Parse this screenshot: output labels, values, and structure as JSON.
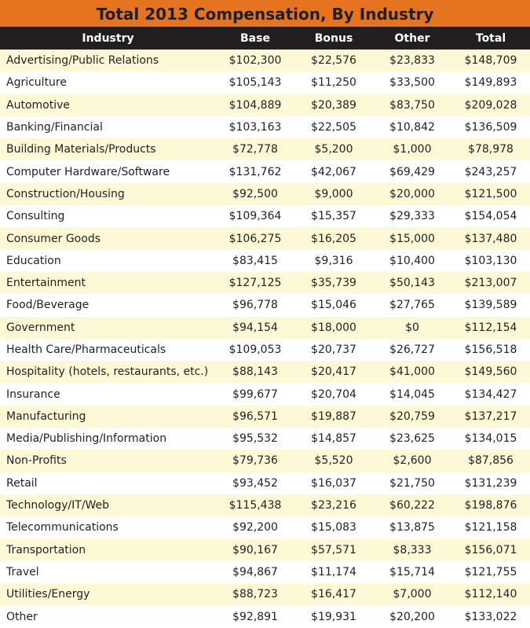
{
  "title": "Total 2013 Compensation, By Industry",
  "columns": [
    "Industry",
    "Base",
    "Bonus",
    "Other",
    "Total"
  ],
  "rows": [
    [
      "Advertising/Public Relations",
      "$102,300",
      "$22,576",
      "$23,833",
      "$148,709"
    ],
    [
      "Agriculture",
      "$105,143",
      "$11,250",
      "$33,500",
      "$149,893"
    ],
    [
      "Automotive",
      "$104,889",
      "$20,389",
      "$83,750",
      "$209,028"
    ],
    [
      "Banking/Financial",
      "$103,163",
      "$22,505",
      "$10,842",
      "$136,509"
    ],
    [
      "Building Materials/Products",
      "$72,778",
      "$5,200",
      "$1,000",
      "$78,978"
    ],
    [
      "Computer Hardware/Software",
      "$131,762",
      "$42,067",
      "$69,429",
      "$243,257"
    ],
    [
      "Construction/Housing",
      "$92,500",
      "$9,000",
      "$20,000",
      "$121,500"
    ],
    [
      "Consulting",
      "$109,364",
      "$15,357",
      "$29,333",
      "$154,054"
    ],
    [
      "Consumer Goods",
      "$106,275",
      "$16,205",
      "$15,000",
      "$137,480"
    ],
    [
      "Education",
      "$83,415",
      "$9,316",
      "$10,400",
      "$103,130"
    ],
    [
      "Entertainment",
      "$127,125",
      "$35,739",
      "$50,143",
      "$213,007"
    ],
    [
      "Food/Beverage",
      "$96,778",
      "$15,046",
      "$27,765",
      "$139,589"
    ],
    [
      "Government",
      "$94,154",
      "$18,000",
      "$0",
      "$112,154"
    ],
    [
      "Health Care/Pharmaceuticals",
      "$109,053",
      "$20,737",
      "$26,727",
      "$156,518"
    ],
    [
      "Hospitality (hotels, restaurants, etc.)",
      "$88,143",
      "$20,417",
      "$41,000",
      "$149,560"
    ],
    [
      "Insurance",
      "$99,677",
      "$20,704",
      "$14,045",
      "$134,427"
    ],
    [
      "Manufacturing",
      "$96,571",
      "$19,887",
      "$20,759",
      "$137,217"
    ],
    [
      "Media/Publishing/Information",
      "$95,532",
      "$14,857",
      "$23,625",
      "$134,015"
    ],
    [
      "Non-Profits",
      "$79,736",
      "$5,520",
      "$2,600",
      "$87,856"
    ],
    [
      "Retail",
      "$93,452",
      "$16,037",
      "$21,750",
      "$131,239"
    ],
    [
      "Technology/IT/Web",
      "$115,438",
      "$23,216",
      "$60,222",
      "$198,876"
    ],
    [
      "Telecommunications",
      "$92,200",
      "$15,083",
      "$13,875",
      "$121,158"
    ],
    [
      "Transportation",
      "$90,167",
      "$57,571",
      "$8,333",
      "$156,071"
    ],
    [
      "Travel",
      "$94,867",
      "$11,174",
      "$15,714",
      "$121,755"
    ],
    [
      "Utilities/Energy",
      "$88,723",
      "$16,417",
      "$7,000",
      "$112,140"
    ],
    [
      "Other",
      "$92,891",
      "$19,931",
      "$20,200",
      "$133,022"
    ]
  ]
}
